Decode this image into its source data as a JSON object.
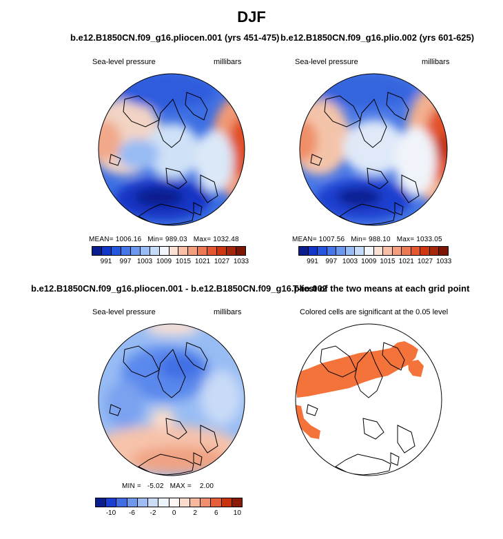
{
  "figure": {
    "title": "DJF"
  },
  "panel1": {
    "title": "b.e12.B1850CN.f09_g16.pliocen.001 (yrs 451-475)",
    "left_label": "Sea-level pressure",
    "right_label": "millibars",
    "mean_label": "MEAN=",
    "mean": "1006.16",
    "min_label": "Min=",
    "min": "989.03",
    "max_label": "Max=",
    "max": "1032.48",
    "ticks": [
      "991",
      "997",
      "1003",
      "1009",
      "1015",
      "1021",
      "1027",
      "1033"
    ]
  },
  "panel2": {
    "title": "b.e12.B1850CN.f09_g16.plio.002 (yrs 601-625)",
    "left_label": "Sea-level pressure",
    "right_label": "millibars",
    "mean_label": "MEAN=",
    "mean": "1007.56",
    "min_label": "Min=",
    "min": "988.10",
    "max_label": "Max=",
    "max": "1033.05",
    "ticks": [
      "991",
      "997",
      "1003",
      "1009",
      "1015",
      "1021",
      "1027",
      "1033"
    ]
  },
  "panel3": {
    "title": "b.e12.B1850CN.f09_g16.pliocen.001 - b.e12.B1850CN.f09_g16.plio.002",
    "left_label": "Sea-level pressure",
    "right_label": "millibars",
    "min_label": "MIN =",
    "min": "-5.02",
    "max_label": "MAX =",
    "max": "2.00",
    "ticks": [
      "-10",
      "-6",
      "-2",
      "0",
      "2",
      "6",
      "10"
    ]
  },
  "panel4": {
    "title": "T-test of the two means at each grid point",
    "subtitle": "Colored cells are significant at the 0.05 level"
  },
  "colors": {
    "slp_scale": [
      "#0a1d8f",
      "#1236c8",
      "#2456e0",
      "#4477e8",
      "#6b98ef",
      "#98bcf4",
      "#c5dcf8",
      "#f2f6fb",
      "#fbe0d4",
      "#f7c0a7",
      "#f39e7c",
      "#ee7a53",
      "#e6562f",
      "#cf3712",
      "#a4260b",
      "#7b1605"
    ],
    "diff_scale": [
      "#0a1d8f",
      "#1a3fd0",
      "#3f6ee4",
      "#6e97ee",
      "#9fbcf4",
      "#cadcf8",
      "#eef4fb",
      "#fdf6f2",
      "#fbdccc",
      "#f6b99e",
      "#ef8f6d",
      "#e65f3a",
      "#c8320f",
      "#8a1a05"
    ],
    "significant": "#f4733a"
  }
}
